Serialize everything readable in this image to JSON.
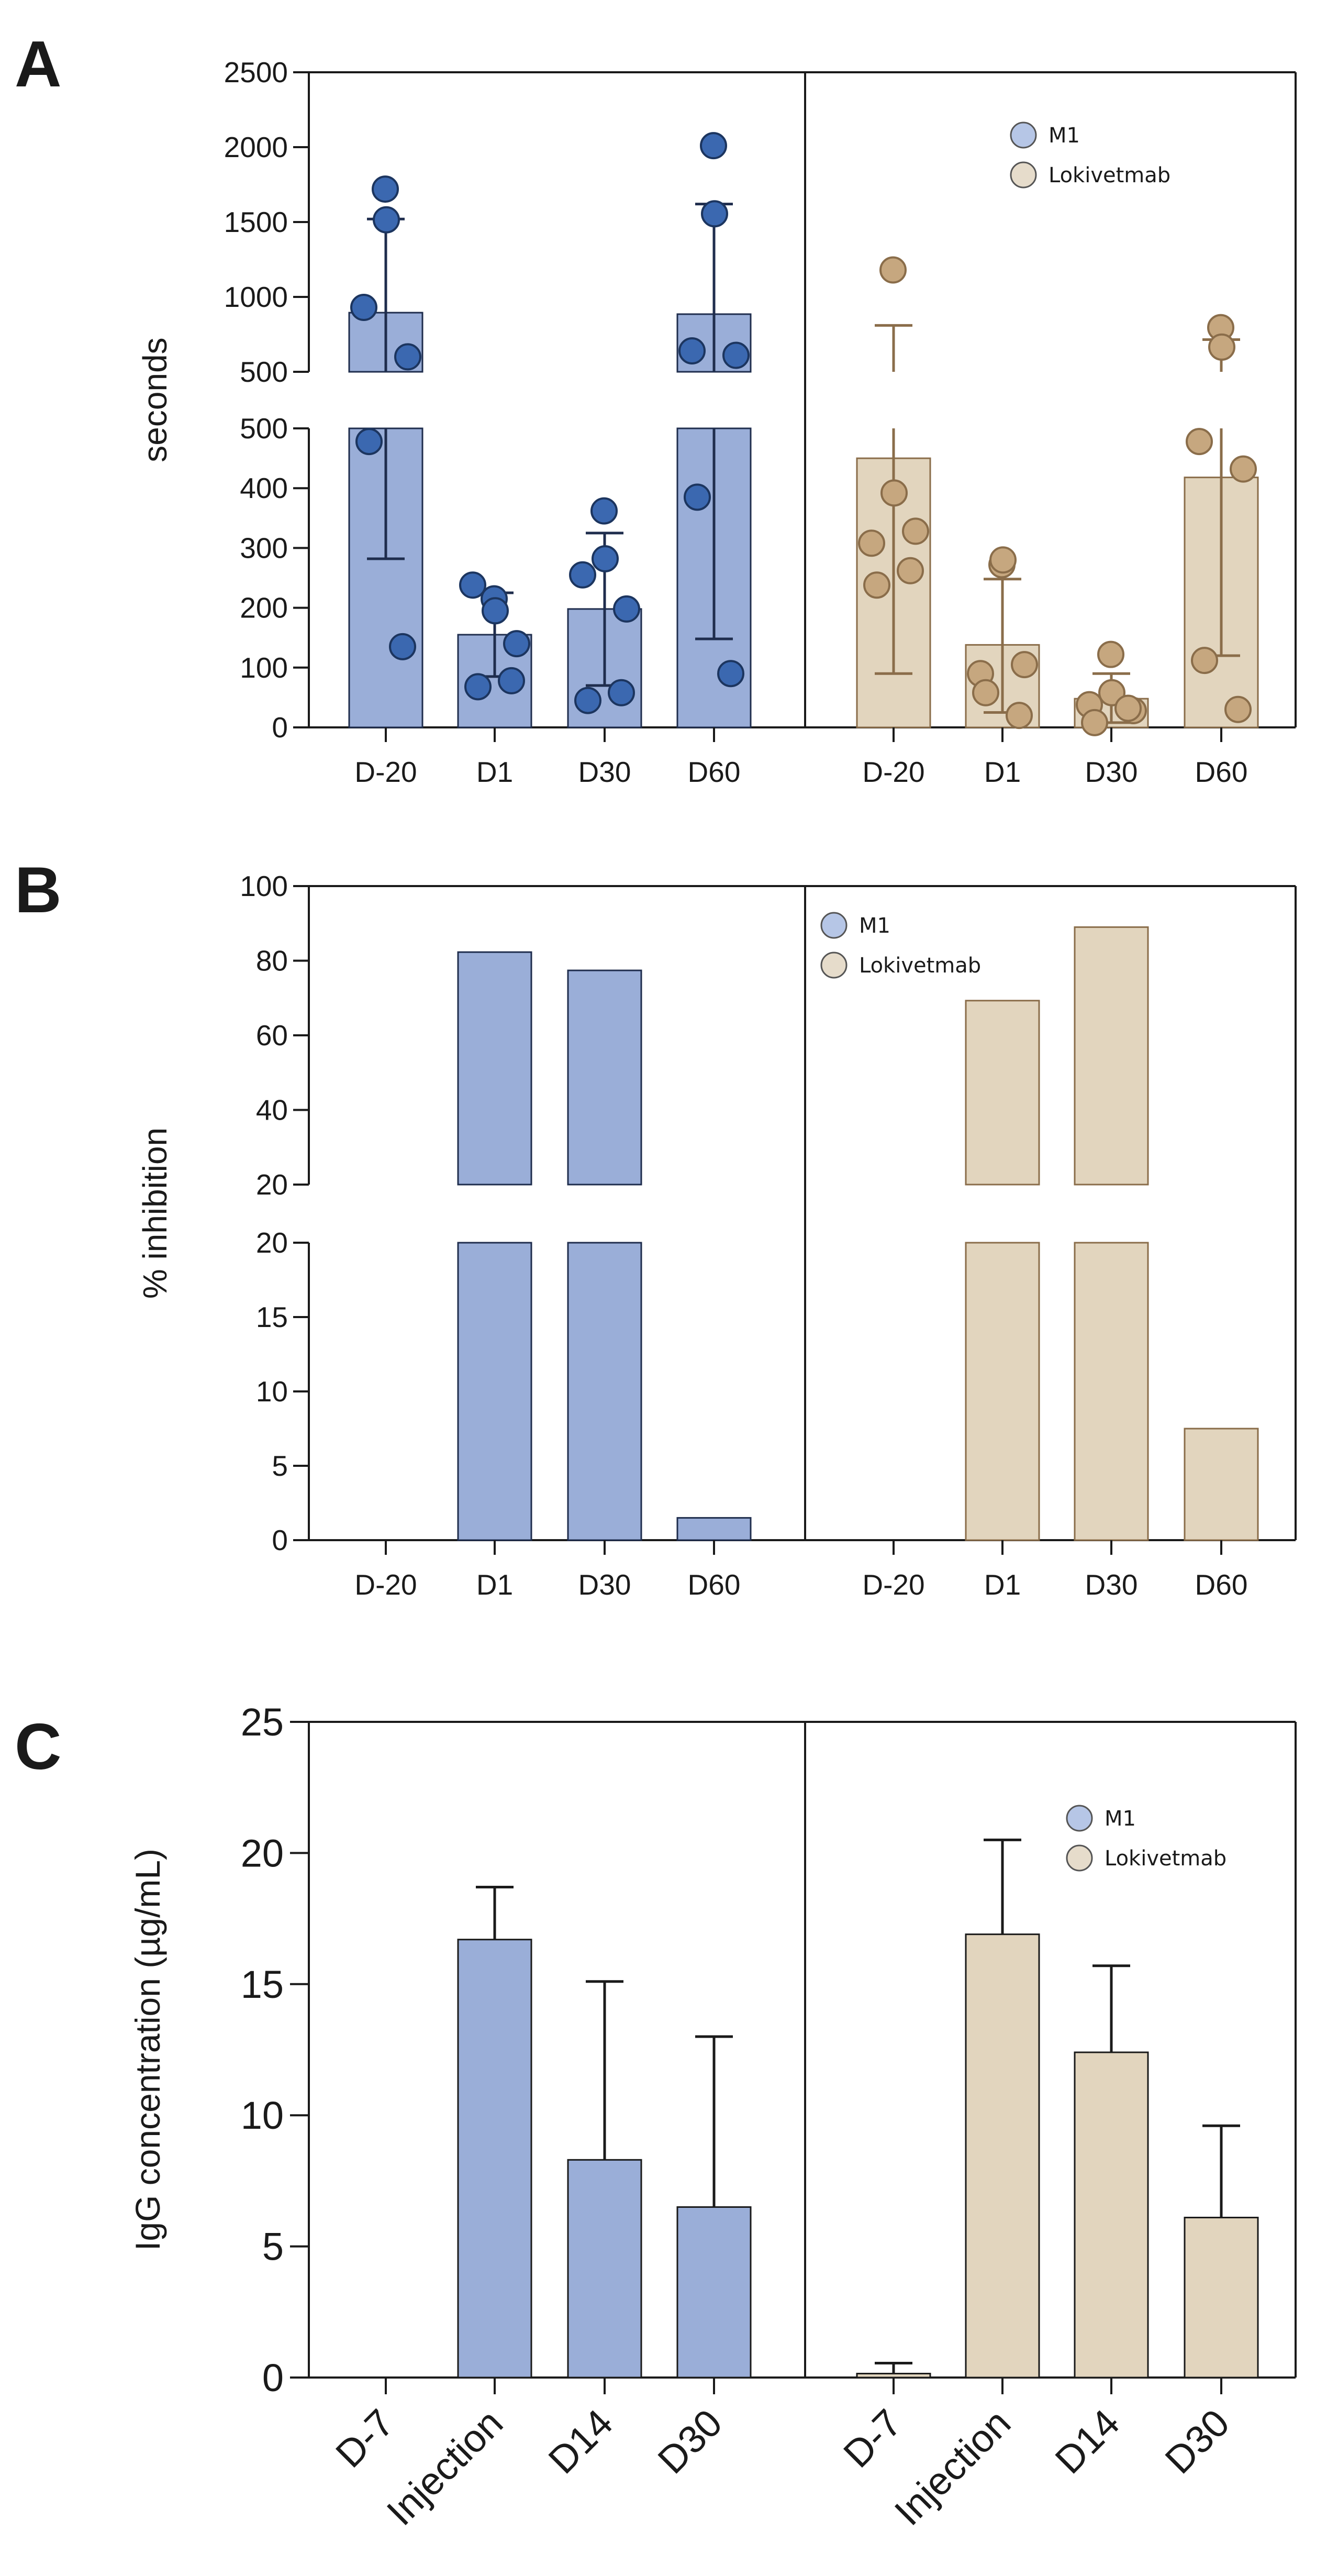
{
  "colors": {
    "m1_fill": "#9aaed8",
    "m1_edge": "#1f2d4d",
    "m1_point": "#3b68b0",
    "m1_point_edge": "#1c355f",
    "lok_fill": "#e2d5be",
    "lok_edge": "#8a6d4a",
    "lok_point": "#c6a77f",
    "lok_point_edge": "#8a6d4a",
    "legend_m1": "#b6c6e6",
    "legend_lok": "#e6dccb",
    "axis": "#1a1a1a",
    "err_m1": "#1f2d4d",
    "err_lok": "#8a6d4a"
  },
  "chart_data": [
    {
      "panel": "A",
      "type": "bar",
      "ylabel": "seconds",
      "y_axis": "broken",
      "ylim_lower": [
        0,
        500
      ],
      "ylim_upper": [
        500,
        2500
      ],
      "yticks_lower": [
        "0",
        "100",
        "200",
        "300",
        "400",
        "500"
      ],
      "yticks_upper": [
        "500",
        "1000",
        "1500",
        "2000",
        "2500"
      ],
      "legend": [
        "M1",
        "Lokivetmab"
      ],
      "groups": [
        {
          "name": "M1",
          "categories": [
            "D-20",
            "D1",
            "D30",
            "D60"
          ],
          "values": [
            895,
            155,
            198,
            885
          ],
          "error_low": [
            282,
            85,
            70,
            148
          ],
          "error_high": [
            1520,
            225,
            325,
            1620
          ],
          "points": [
            [
              1720,
              1515,
              930,
              600,
              478,
              135
            ],
            [
              215,
              195,
              238,
              140,
              68,
              78
            ],
            [
              362,
              282,
              255,
              198,
              45,
              58
            ],
            [
              2010,
              1555,
              640,
              610,
              385,
              90
            ]
          ]
        },
        {
          "name": "Lokivetmab",
          "categories": [
            "D-20",
            "D1",
            "D30",
            "D60"
          ],
          "values": [
            450,
            138,
            48,
            418
          ],
          "error_low": [
            90,
            25,
            8,
            120
          ],
          "error_high": [
            810,
            248,
            90,
            715
          ],
          "points": [
            [
              1180,
              392,
              308,
              328,
              238,
              262
            ],
            [
              272,
              280,
              90,
              105,
              58,
              20
            ],
            [
              122,
              58,
              38,
              28,
              8,
              32
            ],
            [
              795,
              665,
              478,
              432,
              112,
              30
            ]
          ]
        }
      ]
    },
    {
      "panel": "B",
      "type": "bar",
      "ylabel": "% inhibition",
      "y_axis": "broken",
      "ylim_lower": [
        0,
        20
      ],
      "ylim_upper": [
        20,
        100
      ],
      "yticks_lower": [
        "0",
        "5",
        "10",
        "15",
        "20"
      ],
      "yticks_upper": [
        "20",
        "40",
        "60",
        "80",
        "100"
      ],
      "legend": [
        "M1",
        "Lokivetmab"
      ],
      "groups": [
        {
          "name": "M1",
          "categories": [
            "D-20",
            "D1",
            "D30",
            "D60"
          ],
          "values": [
            0,
            82.3,
            77.4,
            1.5
          ]
        },
        {
          "name": "Lokivetmab",
          "categories": [
            "D-20",
            "D1",
            "D30",
            "D60"
          ],
          "values": [
            0,
            69.3,
            89.0,
            7.5
          ]
        }
      ]
    },
    {
      "panel": "C",
      "type": "bar",
      "ylabel": "IgG concentration (µg/mL)",
      "ylim": [
        0,
        25
      ],
      "yticks": [
        "0",
        "5",
        "10",
        "15",
        "20",
        "25"
      ],
      "legend": [
        "M1",
        "Lokivetmab"
      ],
      "groups": [
        {
          "name": "M1",
          "categories": [
            "D-7",
            "Injection",
            "D14",
            "D30"
          ],
          "values": [
            0,
            16.7,
            8.3,
            6.5
          ],
          "error_high": [
            0,
            18.7,
            15.1,
            13.0
          ]
        },
        {
          "name": "Lokivetmab",
          "categories": [
            "D-7",
            "Injection",
            "D14",
            "D30"
          ],
          "values": [
            0.15,
            16.9,
            12.4,
            6.1
          ],
          "error_high": [
            0.55,
            20.5,
            15.7,
            9.6
          ]
        }
      ]
    }
  ]
}
